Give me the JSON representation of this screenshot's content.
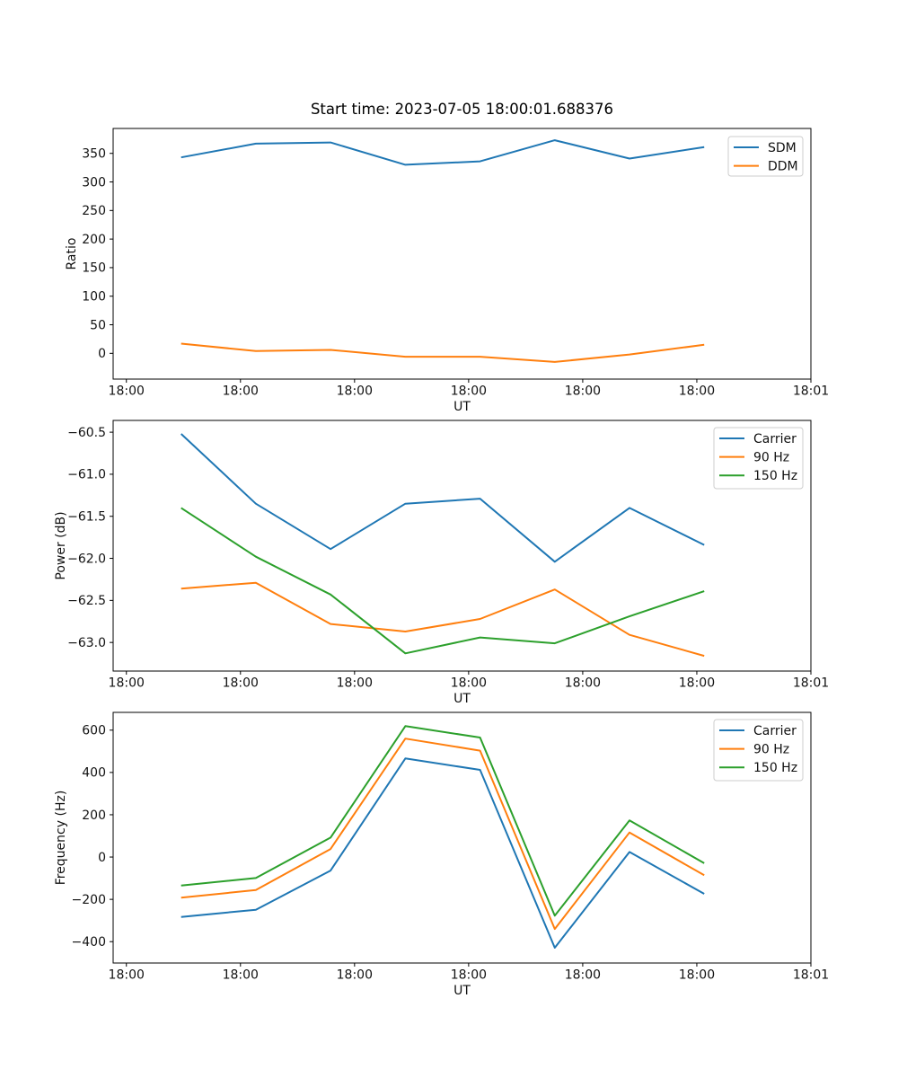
{
  "figure": {
    "title": "Start time: 2023-07-05 18:00:01.688376",
    "background": "#ffffff"
  },
  "colors": {
    "blue": "#1f77b4",
    "orange": "#ff7f0e",
    "green": "#2ca02c"
  },
  "chart_data": [
    {
      "type": "line",
      "title": "Start time: 2023-07-05 18:00:01.688376",
      "xlabel": "UT",
      "ylabel": "Ratio",
      "x": [
        4.8,
        11.35,
        17.9,
        24.45,
        31.0,
        37.55,
        44.1,
        50.65
      ],
      "xlim": [
        -1.16,
        60.0
      ],
      "xticks": {
        "values": [
          0,
          10,
          20,
          30,
          40,
          50,
          60
        ],
        "labels": [
          "18:00",
          "18:00",
          "18:00",
          "18:00",
          "18:00",
          "18:00",
          "18:01"
        ]
      },
      "ylim": [
        -45.1,
        393.6
      ],
      "yticks": {
        "values": [
          0,
          50,
          100,
          150,
          200,
          250,
          300,
          350
        ],
        "labels": [
          "0",
          "50",
          "100",
          "150",
          "200",
          "250",
          "300",
          "350"
        ]
      },
      "grid": false,
      "legend_position": "upper right",
      "series": [
        {
          "name": "SDM",
          "color": "#1f77b4",
          "values": [
            343,
            367,
            369,
            330,
            336,
            373,
            341,
            361
          ]
        },
        {
          "name": "DDM",
          "color": "#ff7f0e",
          "values": [
            17,
            4,
            6,
            -6,
            -6,
            -15,
            -2,
            15
          ]
        }
      ]
    },
    {
      "type": "line",
      "title": "",
      "xlabel": "UT",
      "ylabel": "Power (dB)",
      "x": [
        4.8,
        11.35,
        17.9,
        24.45,
        31.0,
        37.55,
        44.1,
        50.65
      ],
      "xlim": [
        -1.16,
        60.0
      ],
      "xticks": {
        "values": [
          0,
          10,
          20,
          30,
          40,
          50,
          60
        ],
        "labels": [
          "18:00",
          "18:00",
          "18:00",
          "18:00",
          "18:00",
          "18:00",
          "18:01"
        ]
      },
      "ylim": [
        -63.34,
        -60.36
      ],
      "yticks": {
        "values": [
          -63.0,
          -62.5,
          -62.0,
          -61.5,
          -61.0,
          -60.5
        ],
        "labels": [
          "−63.0",
          "−62.5",
          "−62.0",
          "−61.5",
          "−61.0",
          "−60.5"
        ]
      },
      "grid": false,
      "legend_position": "upper right",
      "series": [
        {
          "name": "Carrier",
          "color": "#1f77b4",
          "values": [
            -60.52,
            -61.35,
            -61.89,
            -61.35,
            -61.29,
            -62.04,
            -61.4,
            -61.84
          ]
        },
        {
          "name": "90 Hz",
          "color": "#ff7f0e",
          "values": [
            -62.36,
            -62.29,
            -62.78,
            -62.87,
            -62.72,
            -62.37,
            -62.91,
            -63.16
          ]
        },
        {
          "name": "150 Hz",
          "color": "#2ca02c",
          "values": [
            -61.4,
            -61.98,
            -62.43,
            -63.13,
            -62.94,
            -63.01,
            -62.69,
            -62.39
          ]
        }
      ]
    },
    {
      "type": "line",
      "title": "",
      "xlabel": "UT",
      "ylabel": "Frequency (Hz)",
      "x": [
        4.8,
        11.35,
        17.9,
        24.45,
        31.0,
        37.55,
        44.1,
        50.65
      ],
      "xlim": [
        -1.16,
        60.0
      ],
      "xticks": {
        "values": [
          0,
          10,
          20,
          30,
          40,
          50,
          60
        ],
        "labels": [
          "18:00",
          "18:00",
          "18:00",
          "18:00",
          "18:00",
          "18:00",
          "18:01"
        ]
      },
      "ylim": [
        -501,
        684
      ],
      "yticks": {
        "values": [
          -400,
          -200,
          0,
          200,
          400,
          600
        ],
        "labels": [
          "−400",
          "−200",
          "0",
          "200",
          "400",
          "600"
        ]
      },
      "grid": false,
      "legend_position": "upper right",
      "series": [
        {
          "name": "Carrier",
          "color": "#1f77b4",
          "values": [
            -283,
            -249,
            -64,
            466,
            412,
            -429,
            24,
            -174
          ]
        },
        {
          "name": "90 Hz",
          "color": "#ff7f0e",
          "values": [
            -192,
            -156,
            38,
            560,
            503,
            -340,
            116,
            -86
          ]
        },
        {
          "name": "150 Hz",
          "color": "#2ca02c",
          "values": [
            -135,
            -99,
            92,
            619,
            565,
            -277,
            173,
            -29
          ]
        }
      ]
    }
  ]
}
